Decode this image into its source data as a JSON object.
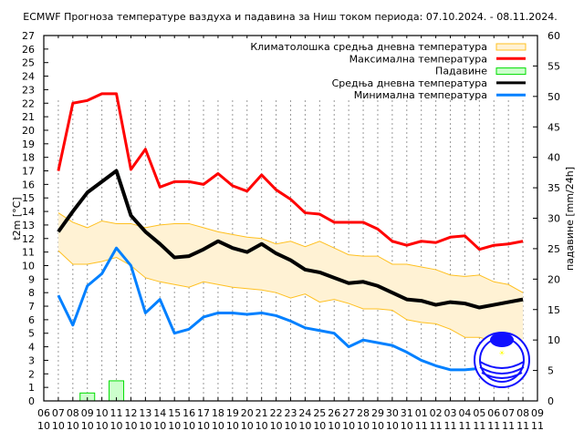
{
  "chart_data": {
    "type": "line",
    "title": "ECMWF Прогноза температуре ваздуха и падавина за Ниш током периода: 07.10.2024. - 08.11.2024.",
    "ylabel": "t2m [°C]",
    "y2label": "падавине [mm/24h]",
    "ylim": [
      0,
      27
    ],
    "y2lim": [
      0,
      60
    ],
    "grid": "vertical dotted",
    "legend": "top-right",
    "x_ticks": [
      [
        "06",
        "10"
      ],
      [
        "07",
        "10"
      ],
      [
        "08",
        "10"
      ],
      [
        "09",
        "10"
      ],
      [
        "10",
        "10"
      ],
      [
        "11",
        "10"
      ],
      [
        "12",
        "10"
      ],
      [
        "13",
        "10"
      ],
      [
        "14",
        "10"
      ],
      [
        "15",
        "10"
      ],
      [
        "16",
        "10"
      ],
      [
        "17",
        "10"
      ],
      [
        "18",
        "10"
      ],
      [
        "19",
        "10"
      ],
      [
        "20",
        "10"
      ],
      [
        "21",
        "10"
      ],
      [
        "22",
        "10"
      ],
      [
        "23",
        "10"
      ],
      [
        "24",
        "10"
      ],
      [
        "25",
        "10"
      ],
      [
        "26",
        "10"
      ],
      [
        "27",
        "10"
      ],
      [
        "28",
        "10"
      ],
      [
        "29",
        "10"
      ],
      [
        "30",
        "10"
      ],
      [
        "31",
        "10"
      ],
      [
        "01",
        "11"
      ],
      [
        "02",
        "11"
      ],
      [
        "03",
        "11"
      ],
      [
        "04",
        "11"
      ],
      [
        "05",
        "11"
      ],
      [
        "06",
        "11"
      ],
      [
        "07",
        "11"
      ],
      [
        "08",
        "11"
      ],
      [
        "09",
        "11"
      ]
    ],
    "y_ticks": [
      0,
      1,
      2,
      3,
      4,
      5,
      6,
      7,
      8,
      9,
      10,
      11,
      12,
      13,
      14,
      15,
      16,
      17,
      18,
      19,
      20,
      21,
      22,
      23,
      24,
      25,
      26,
      27
    ],
    "y2_ticks": [
      0,
      5,
      10,
      15,
      20,
      25,
      30,
      35,
      40,
      45,
      50,
      55,
      60
    ],
    "x": [
      "07.10",
      "08.10",
      "09.10",
      "10.10",
      "11.10",
      "12.10",
      "13.10",
      "14.10",
      "15.10",
      "16.10",
      "17.10",
      "18.10",
      "19.10",
      "20.10",
      "21.10",
      "22.10",
      "23.10",
      "24.10",
      "25.10",
      "26.10",
      "27.10",
      "28.10",
      "29.10",
      "30.10",
      "31.10",
      "01.11",
      "02.11",
      "03.11",
      "04.11",
      "05.11",
      "06.11",
      "07.11",
      "08.11"
    ],
    "climate_band": {
      "name": "Климатолошка средња дневна температура",
      "color": "#ffc020",
      "fill": "#fff2d4",
      "upper": [
        13.9,
        13.2,
        12.8,
        13.3,
        13.1,
        13.1,
        12.8,
        13.0,
        13.1,
        13.1,
        12.8,
        12.5,
        12.3,
        12.1,
        12.0,
        11.6,
        11.8,
        11.4,
        11.8,
        11.3,
        10.8,
        10.7,
        10.7,
        10.1,
        10.1,
        9.9,
        9.7,
        9.3,
        9.2,
        9.3,
        8.8,
        8.6,
        8.0
      ],
      "lower": [
        11.1,
        10.1,
        10.1,
        10.3,
        10.6,
        10.0,
        9.1,
        8.8,
        8.6,
        8.4,
        8.8,
        8.6,
        8.4,
        8.3,
        8.2,
        8.0,
        7.6,
        7.9,
        7.3,
        7.5,
        7.2,
        6.8,
        6.8,
        6.7,
        6.0,
        5.8,
        5.7,
        5.3,
        4.7,
        4.7,
        4.4,
        4.0,
        3.8
      ]
    },
    "series": [
      {
        "name": "Максимална температура",
        "color": "#ff0000",
        "width": 3,
        "values": [
          17.0,
          22.0,
          22.2,
          22.7,
          22.7,
          17.1,
          18.6,
          15.8,
          16.2,
          16.2,
          16.0,
          16.8,
          15.9,
          15.5,
          16.7,
          15.6,
          14.9,
          13.9,
          13.8,
          13.2,
          13.2,
          13.2,
          12.7,
          11.8,
          11.5,
          11.8,
          11.7,
          12.1,
          12.2,
          11.2,
          11.5,
          11.6,
          11.8
        ]
      },
      {
        "name": "Средња дневна температура",
        "color": "#000000",
        "width": 4,
        "values": [
          12.5,
          14.0,
          15.4,
          16.2,
          17.0,
          13.7,
          12.5,
          11.6,
          10.6,
          10.7,
          11.2,
          11.8,
          11.3,
          11.0,
          11.6,
          10.9,
          10.4,
          9.7,
          9.5,
          9.1,
          8.7,
          8.8,
          8.5,
          8.0,
          7.5,
          7.4,
          7.1,
          7.3,
          7.2,
          6.9,
          7.1,
          7.3,
          7.5
        ]
      },
      {
        "name": "Минимална температура",
        "color": "#0080ff",
        "width": 3,
        "values": [
          7.8,
          5.6,
          8.5,
          9.4,
          11.3,
          10.0,
          6.5,
          7.5,
          5.0,
          5.3,
          6.2,
          6.5,
          6.5,
          6.4,
          6.5,
          6.3,
          5.9,
          5.4,
          5.2,
          5.0,
          4.0,
          4.5,
          4.3,
          4.1,
          3.6,
          3.0,
          2.6,
          2.3,
          2.3,
          2.4,
          2.7,
          2.8,
          3.0
        ]
      }
    ],
    "precipitation": {
      "name": "Падавине",
      "color": "#00dd00",
      "fill": "#ccffcc",
      "values": [
        0,
        0,
        1.3,
        0,
        3.3,
        0,
        0,
        0,
        0,
        0,
        0,
        0,
        0,
        0,
        0,
        0,
        0,
        0,
        0,
        0,
        0,
        0,
        0,
        0,
        0,
        0,
        0,
        0,
        0,
        0,
        0,
        0,
        0
      ]
    }
  }
}
